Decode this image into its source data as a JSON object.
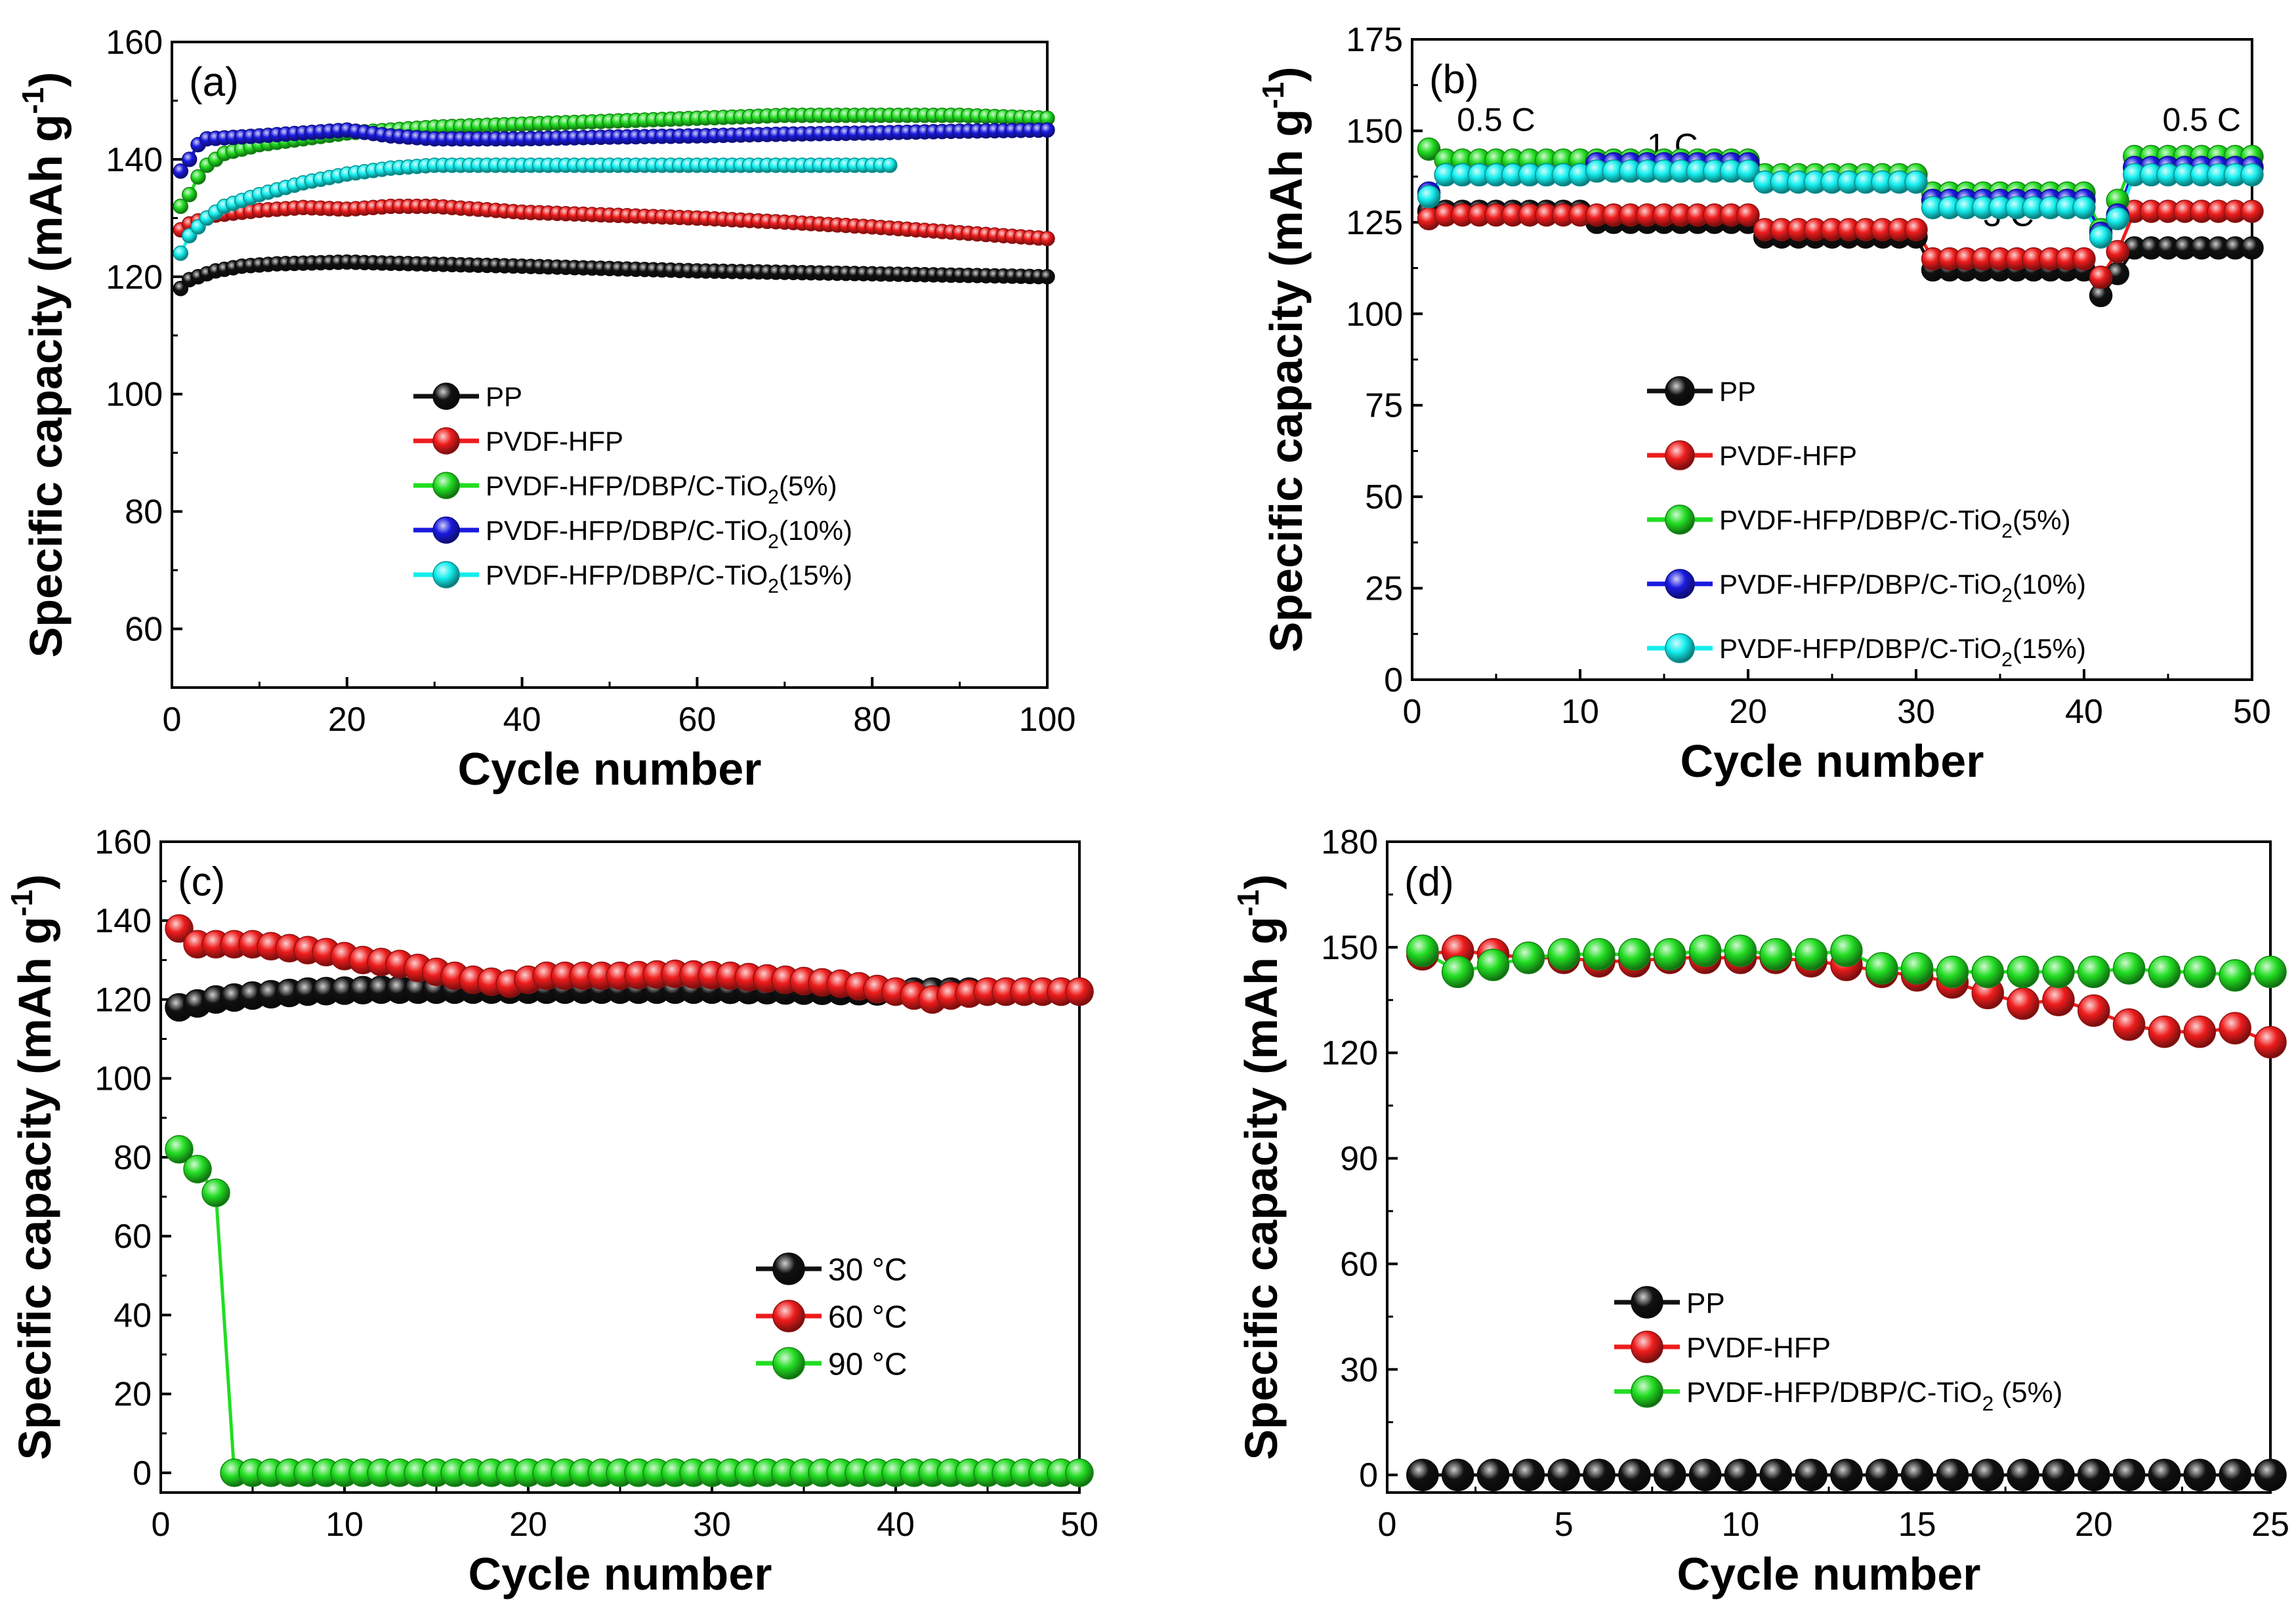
{
  "colors": {
    "PP": "#111111",
    "PVDF-HFP": "#ee1c1c",
    "C5": "#22dd22",
    "C10": "#1a1ae0",
    "C15": "#14eeee",
    "T30": "#111111",
    "T60": "#ee1c1c",
    "T90": "#22dd22"
  },
  "chart_data": [
    {
      "type": "line",
      "panel_label": "(a)",
      "xlabel": "Cycle number",
      "ylabel": "Specific capacity (mAh g",
      "ylabel_sup": "-1",
      "ylabel_close": ")",
      "xlim": [
        0,
        100
      ],
      "ylim": [
        50,
        160
      ],
      "xticks": [
        "0",
        "20",
        "40",
        "60",
        "80",
        "100"
      ],
      "yticks": [
        "60",
        "80",
        "100",
        "120",
        "140",
        "160"
      ],
      "legend_position": "center-right",
      "series": [
        {
          "name": "PP",
          "color_key": "PP",
          "points": [
            [
              1,
              118
            ],
            [
              2,
              119.5
            ],
            [
              3,
              120
            ],
            [
              5,
              121
            ],
            [
              8,
              121.8
            ],
            [
              12,
              122.2
            ],
            [
              20,
              122.5
            ],
            [
              25,
              122.3
            ],
            [
              40,
              121.8
            ],
            [
              60,
              121
            ],
            [
              80,
              120.5
            ],
            [
              100,
              120
            ]
          ]
        },
        {
          "name": "PVDF-HFP",
          "color_key": "PVDF-HFP",
          "points": [
            [
              1,
              128
            ],
            [
              2,
              129
            ],
            [
              5,
              130.5
            ],
            [
              10,
              131.3
            ],
            [
              15,
              131.8
            ],
            [
              20,
              131.5
            ],
            [
              25,
              132
            ],
            [
              30,
              132
            ],
            [
              40,
              131
            ],
            [
              50,
              130.5
            ],
            [
              60,
              130
            ],
            [
              70,
              129.3
            ],
            [
              80,
              128.5
            ],
            [
              90,
              127.5
            ],
            [
              100,
              126.5
            ]
          ]
        },
        {
          "name": "PVDF-HFP/DBP/C-TiO",
          "name_sub": "2",
          "name_tail": "(5%)",
          "color_key": "C5",
          "points": [
            [
              1,
              132
            ],
            [
              2,
              134
            ],
            [
              3,
              137
            ],
            [
              4,
              139
            ],
            [
              6,
              141
            ],
            [
              10,
              142.5
            ],
            [
              15,
              143.5
            ],
            [
              20,
              144.5
            ],
            [
              30,
              145.5
            ],
            [
              40,
              146
            ],
            [
              50,
              146.5
            ],
            [
              60,
              147
            ],
            [
              70,
              147.5
            ],
            [
              80,
              147.5
            ],
            [
              90,
              147.5
            ],
            [
              100,
              147
            ]
          ]
        },
        {
          "name": "PVDF-HFP/DBP/C-TiO",
          "name_sub": "2",
          "name_tail": "(10%)",
          "color_key": "C10",
          "points": [
            [
              1,
              138
            ],
            [
              2,
              140
            ],
            [
              3,
              142.5
            ],
            [
              4,
              143.5
            ],
            [
              10,
              144
            ],
            [
              15,
              144.5
            ],
            [
              20,
              145
            ],
            [
              25,
              144
            ],
            [
              30,
              143.5
            ],
            [
              40,
              143.5
            ],
            [
              50,
              143.8
            ],
            [
              60,
              144
            ],
            [
              70,
              144.3
            ],
            [
              80,
              144.5
            ],
            [
              90,
              144.8
            ],
            [
              100,
              145
            ]
          ]
        },
        {
          "name": "PVDF-HFP/DBP/C-TiO",
          "name_sub": "2",
          "name_tail": "(15%)",
          "color_key": "C15",
          "points": [
            [
              1,
              124
            ],
            [
              2,
              127
            ],
            [
              4,
              130
            ],
            [
              6,
              132
            ],
            [
              10,
              134
            ],
            [
              15,
              136
            ],
            [
              20,
              137.5
            ],
            [
              25,
              138.5
            ],
            [
              30,
              139
            ],
            [
              40,
              139
            ],
            [
              50,
              139
            ],
            [
              60,
              139
            ],
            [
              70,
              139
            ],
            [
              80,
              139
            ],
            [
              82,
              139
            ]
          ]
        }
      ]
    },
    {
      "type": "line",
      "panel_label": "(b)",
      "xlabel": "Cycle number",
      "ylabel": "Specific capacity (mAh g",
      "ylabel_sup": "-1",
      "ylabel_close": ")",
      "xlim": [
        0,
        50
      ],
      "ylim": [
        0,
        175
      ],
      "xticks": [
        "0",
        "10",
        "20",
        "30",
        "40",
        "50"
      ],
      "yticks": [
        "0",
        "25",
        "50",
        "75",
        "100",
        "125",
        "150",
        "175"
      ],
      "annotations": [
        {
          "text": "0.5 C",
          "x": 5,
          "y": 150
        },
        {
          "text": "1 C",
          "x": 15.5,
          "y": 143
        },
        {
          "text": "2 C",
          "x": 25,
          "y": 134
        },
        {
          "text": "3 C",
          "x": 35.5,
          "y": 124
        },
        {
          "text": "0.5 C",
          "x": 47,
          "y": 150
        }
      ],
      "legend_position": "center-right",
      "series": [
        {
          "name": "PP",
          "color_key": "PP",
          "levels": [
            128,
            125,
            121,
            112,
            105,
            118
          ],
          "first": 128,
          "transition": 111
        },
        {
          "name": "PVDF-HFP",
          "color_key": "PVDF-HFP",
          "levels": [
            127,
            127,
            123,
            115,
            110,
            128
          ],
          "first": 126,
          "transition": 117
        },
        {
          "name": "PVDF-HFP/DBP/C-TiO",
          "name_sub": "2",
          "name_tail": "(5%)",
          "color_key": "C5",
          "levels": [
            142,
            142,
            138,
            133,
            123,
            143
          ],
          "first": 145,
          "transition": 131
        },
        {
          "name": "PVDF-HFP/DBP/C-TiO",
          "name_sub": "2",
          "name_tail": "(10%)",
          "color_key": "C10",
          "levels": [
            138,
            141,
            136,
            131,
            122,
            140
          ],
          "first": 133,
          "transition": 127
        },
        {
          "name": "PVDF-HFP/DBP/C-TiO",
          "name_sub": "2",
          "name_tail": "(15%)",
          "color_key": "C15",
          "levels": [
            138,
            139,
            136,
            129,
            121,
            138
          ],
          "first": 132,
          "transition": 126
        }
      ]
    },
    {
      "type": "line",
      "panel_label": "(c)",
      "xlabel": "Cycle number",
      "ylabel": "Specific capacity (mAh g",
      "ylabel_sup": "-1",
      "ylabel_close": ")",
      "xlim": [
        0,
        50
      ],
      "ylim": [
        -5,
        160
      ],
      "xticks": [
        "0",
        "10",
        "20",
        "30",
        "40",
        "50"
      ],
      "yticks": [
        "0",
        "20",
        "40",
        "60",
        "80",
        "100",
        "120",
        "140",
        "160"
      ],
      "legend_position": "center-right",
      "series": [
        {
          "name": "30 °C",
          "color_key": "T30",
          "points": [
            [
              1,
              118
            ],
            [
              2,
              119
            ],
            [
              3,
              120
            ],
            [
              5,
              121
            ],
            [
              8,
              122
            ],
            [
              12,
              122.5
            ],
            [
              20,
              122.5
            ],
            [
              30,
              122.5
            ],
            [
              40,
              122
            ],
            [
              50,
              122
            ]
          ]
        },
        {
          "name": "60 °C",
          "color_key": "T60",
          "points": [
            [
              1,
              138
            ],
            [
              2,
              134
            ],
            [
              3,
              134
            ],
            [
              5,
              134
            ],
            [
              7,
              133
            ],
            [
              9,
              132
            ],
            [
              11,
              130
            ],
            [
              13,
              129
            ],
            [
              15,
              127
            ],
            [
              17,
              125
            ],
            [
              19,
              124
            ],
            [
              21,
              126
            ],
            [
              23,
              126
            ],
            [
              25,
              126
            ],
            [
              28,
              126.5
            ],
            [
              31,
              126
            ],
            [
              34,
              125
            ],
            [
              37,
              124
            ],
            [
              40,
              122
            ],
            [
              42,
              120
            ],
            [
              43,
              121
            ],
            [
              45,
              122
            ],
            [
              47,
              122
            ],
            [
              50,
              122
            ]
          ]
        },
        {
          "name": "90 °C",
          "color_key": "T90",
          "points": [
            [
              1,
              82
            ],
            [
              2,
              77
            ],
            [
              3,
              71
            ],
            [
              4,
              0
            ],
            [
              50,
              0
            ]
          ]
        }
      ]
    },
    {
      "type": "line",
      "panel_label": "(d)",
      "xlabel": "Cycle number",
      "ylabel": "Specific capacity (mAh g",
      "ylabel_sup": "-1",
      "ylabel_close": ")",
      "xlim": [
        0,
        25
      ],
      "ylim": [
        -5,
        180
      ],
      "xticks": [
        "0",
        "5",
        "10",
        "15",
        "20",
        "25"
      ],
      "yticks": [
        "0",
        "30",
        "60",
        "90",
        "120",
        "150",
        "180"
      ],
      "legend_position": "bottom-right",
      "series": [
        {
          "name": "PP",
          "color_key": "PP",
          "values": [
            0,
            0,
            0,
            0,
            0,
            0,
            0,
            0,
            0,
            0,
            0,
            0,
            0,
            0,
            0,
            0,
            0,
            0,
            0,
            0,
            0,
            0,
            0,
            0,
            0
          ]
        },
        {
          "name": "PVDF-HFP",
          "color_key": "PVDF-HFP",
          "values": [
            148,
            149,
            148,
            147,
            147,
            146,
            146,
            147,
            147,
            147,
            147,
            146,
            145,
            143,
            142,
            140,
            137,
            134,
            135,
            132,
            128,
            126,
            126,
            127,
            123
          ]
        },
        {
          "name": "PVDF-HFP/DBP/C-TiO",
          "name_sub": "2",
          "name_tail": " (5%)",
          "color_key": "C5",
          "values": [
            149,
            143,
            145,
            147,
            148,
            148,
            148,
            148,
            149,
            149,
            148,
            148,
            149,
            144,
            144,
            143,
            143,
            143,
            143,
            143,
            144,
            143,
            143,
            142,
            143
          ]
        }
      ]
    }
  ]
}
